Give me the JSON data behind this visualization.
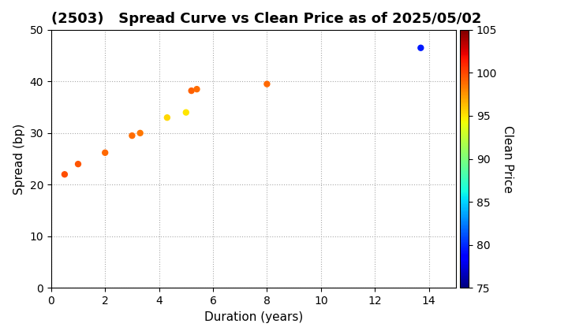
{
  "title": "(2503)   Spread Curve vs Clean Price as of 2025/05/02",
  "xlabel": "Duration (years)",
  "ylabel": "Spread (bp)",
  "colorbar_label": "Clean Price",
  "xlim": [
    0,
    15
  ],
  "ylim": [
    0,
    50
  ],
  "xticks": [
    0,
    2,
    4,
    6,
    8,
    10,
    12,
    14
  ],
  "yticks": [
    0,
    10,
    20,
    30,
    40,
    50
  ],
  "colorbar_min": 75,
  "colorbar_max": 105,
  "colorbar_ticks": [
    75,
    80,
    85,
    90,
    95,
    100,
    105
  ],
  "points": [
    {
      "duration": 0.5,
      "spread": 22.0,
      "clean_price": 99.8
    },
    {
      "duration": 1.0,
      "spread": 24.0,
      "clean_price": 99.5
    },
    {
      "duration": 2.0,
      "spread": 26.2,
      "clean_price": 99.0
    },
    {
      "duration": 3.0,
      "spread": 29.5,
      "clean_price": 98.8
    },
    {
      "duration": 3.3,
      "spread": 30.0,
      "clean_price": 98.5
    },
    {
      "duration": 4.3,
      "spread": 33.0,
      "clean_price": 95.5
    },
    {
      "duration": 5.0,
      "spread": 34.0,
      "clean_price": 95.0
    },
    {
      "duration": 5.2,
      "spread": 38.2,
      "clean_price": 99.2
    },
    {
      "duration": 5.4,
      "spread": 38.5,
      "clean_price": 98.8
    },
    {
      "duration": 8.0,
      "spread": 39.5,
      "clean_price": 99.0
    },
    {
      "duration": 13.7,
      "spread": 46.5,
      "clean_price": 79.5
    }
  ],
  "background_color": "#ffffff",
  "grid_color": "#aaaaaa",
  "title_fontsize": 13,
  "title_fontweight": "bold",
  "label_fontsize": 11,
  "tick_fontsize": 10,
  "marker_size": 25,
  "colormap": "jet"
}
